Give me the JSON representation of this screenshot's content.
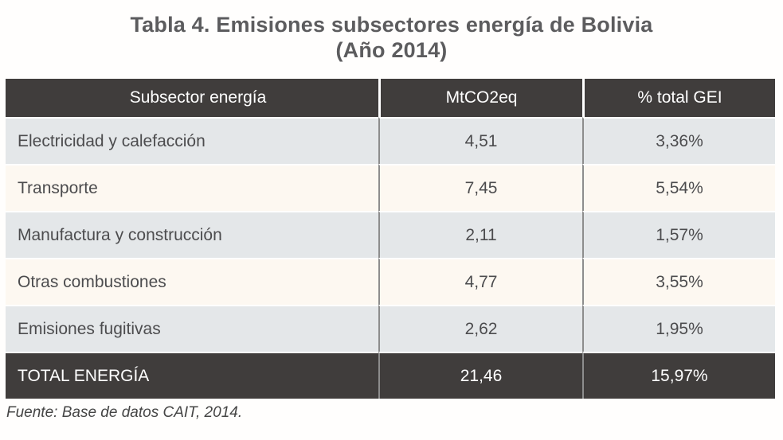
{
  "title_line1": "Tabla 4. Emisiones subsectores energía de Bolivia",
  "title_line2": "(Año 2014)",
  "source_note": "Fuente: Base de datos CAIT, 2014.",
  "chart_data": {
    "type": "table",
    "title": "Tabla 4. Emisiones subsectores energía de Bolivia (Año 2014)",
    "columns": [
      "Subsector energía",
      "MtCO2eq",
      "% total GEI"
    ],
    "rows": [
      [
        "Electricidad y calefacción",
        "4,51",
        "3,36%"
      ],
      [
        "Transporte",
        "7,45",
        "5,54%"
      ],
      [
        "Manufactura y construcción",
        "2,11",
        "1,57%"
      ],
      [
        "Otras combustiones",
        "4,77",
        "3,55%"
      ],
      [
        "Emisiones fugitivas",
        "2,62",
        "1,95%"
      ]
    ],
    "total_row": [
      "TOTAL ENERGÍA",
      "21,46",
      "15,97%"
    ],
    "rows_numeric": {
      "mtco2eq": [
        4.51,
        7.45,
        2.11,
        4.77,
        2.62
      ],
      "pct_total_gei": [
        3.36,
        5.54,
        1.57,
        3.55,
        1.95
      ],
      "total_mtco2eq": 21.46,
      "total_pct_total_gei": 15.97
    },
    "source": "Fuente: Base de datos CAIT, 2014."
  },
  "colors": {
    "header_bg": "#403d3c",
    "header_text": "#ffffff",
    "row_gray_bg": "#e4e7e9",
    "row_cream_bg": "#fdf8f1",
    "body_text": "#4c4c4e",
    "divider_line": "#8d8d8d",
    "title_text": "#5c5c5e"
  }
}
